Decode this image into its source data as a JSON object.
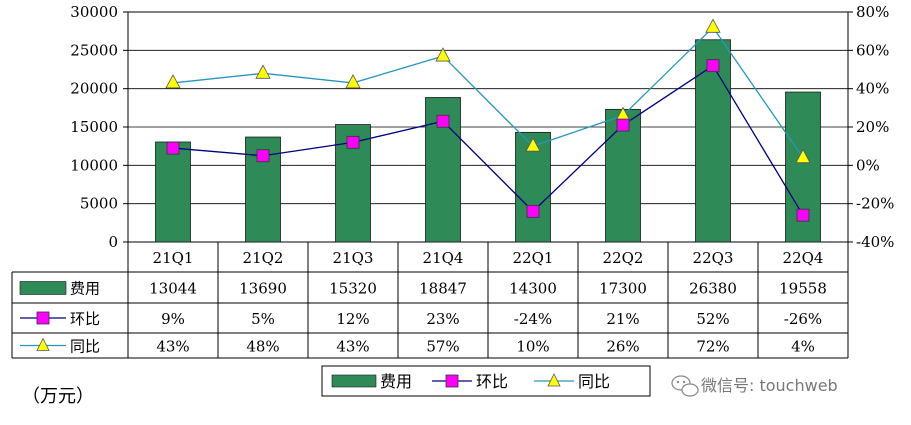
{
  "chart_data": {
    "type": "bar",
    "categories": [
      "21Q1",
      "21Q2",
      "21Q3",
      "21Q4",
      "22Q1",
      "22Q2",
      "22Q3",
      "22Q4"
    ],
    "series": [
      {
        "name": "费用",
        "type": "bar",
        "axis": "left",
        "values": [
          13044,
          13690,
          15320,
          18847,
          14300,
          17300,
          26380,
          19558
        ],
        "labels": [
          "13044",
          "13690",
          "15320",
          "18847",
          "14300",
          "17300",
          "26380",
          "19558"
        ],
        "color": "#2e8b57"
      },
      {
        "name": "环比",
        "type": "line",
        "axis": "right",
        "values": [
          9,
          5,
          12,
          23,
          -24,
          21,
          52,
          -26
        ],
        "labels": [
          "9%",
          "5%",
          "12%",
          "23%",
          "-24%",
          "21%",
          "52%",
          "-26%"
        ],
        "color": "#000080",
        "marker": "square",
        "marker_color": "#ff00ff"
      },
      {
        "name": "同比",
        "type": "line",
        "axis": "right",
        "values": [
          43,
          48,
          43,
          57,
          10,
          26,
          72,
          4
        ],
        "labels": [
          "43%",
          "48%",
          "43%",
          "57%",
          "10%",
          "26%",
          "72%",
          "4%"
        ],
        "color": "#2596be",
        "marker": "triangle",
        "marker_color": "#ffff00"
      }
    ],
    "left_axis": {
      "ylim": [
        0,
        30000
      ],
      "ticks": [
        "0",
        "5000",
        "10000",
        "15000",
        "20000",
        "25000",
        "30000"
      ]
    },
    "right_axis": {
      "ylim": [
        -40,
        80
      ],
      "ticks": [
        "-40%",
        "-20%",
        "0%",
        "20%",
        "40%",
        "60%",
        "80%"
      ]
    },
    "legend_position": "bottom",
    "grid": true,
    "unit_label": "（万元）"
  },
  "watermark": {
    "text": "微信号: touchweb",
    "icon": "wechat-icon"
  }
}
